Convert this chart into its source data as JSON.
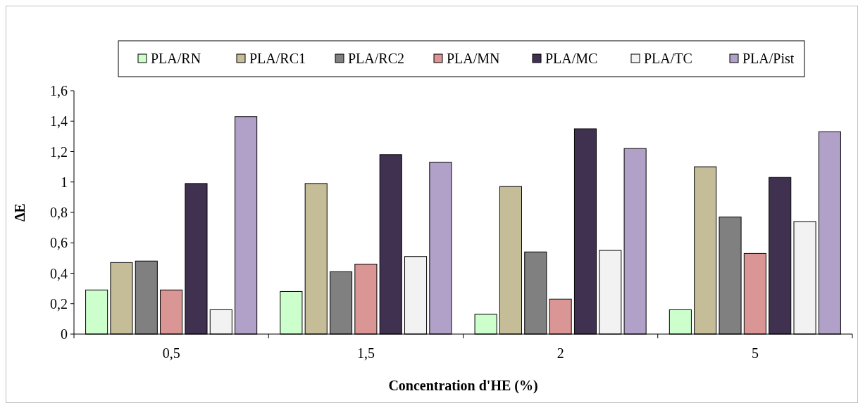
{
  "chart_data": {
    "type": "bar",
    "xlabel": "Concentration d'HE (%)",
    "ylabel": "ΔE",
    "categories": [
      "0,5",
      "1,5",
      "2",
      "5"
    ],
    "series": [
      {
        "name": "PLA/RN",
        "color": "#ccffcc",
        "values": [
          0.29,
          0.28,
          0.13,
          0.16
        ]
      },
      {
        "name": "PLA/RC1",
        "color": "#c4bd97",
        "values": [
          0.47,
          0.99,
          0.97,
          1.1
        ]
      },
      {
        "name": "PLA/RC2",
        "color": "#808080",
        "values": [
          0.48,
          0.41,
          0.54,
          0.77
        ]
      },
      {
        "name": "PLA/MN",
        "color": "#da9694",
        "values": [
          0.29,
          0.46,
          0.23,
          0.53
        ]
      },
      {
        "name": "PLA/MC",
        "color": "#403151",
        "values": [
          0.99,
          1.18,
          1.35,
          1.03
        ]
      },
      {
        "name": "PLA/TC",
        "color": "#f2f2f2",
        "values": [
          0.16,
          0.51,
          0.55,
          0.74
        ]
      },
      {
        "name": "PLA/Pist",
        "color": "#b1a0c7",
        "values": [
          1.43,
          1.13,
          1.22,
          1.33
        ]
      }
    ],
    "ylim": [
      0,
      1.6
    ],
    "yticks": [
      0,
      {
        "value": 0.2,
        "label": "0,2"
      },
      {
        "value": 0.4,
        "label": "0,4"
      },
      {
        "value": 0.6,
        "label": "0,6"
      },
      {
        "value": 0.8,
        "label": "0,8"
      },
      1,
      {
        "value": 1.2,
        "label": "1,2"
      },
      {
        "value": 1.4,
        "label": "1,4"
      },
      {
        "value": 1.6,
        "label": "1,6"
      }
    ],
    "legend": "top",
    "grid": false
  }
}
